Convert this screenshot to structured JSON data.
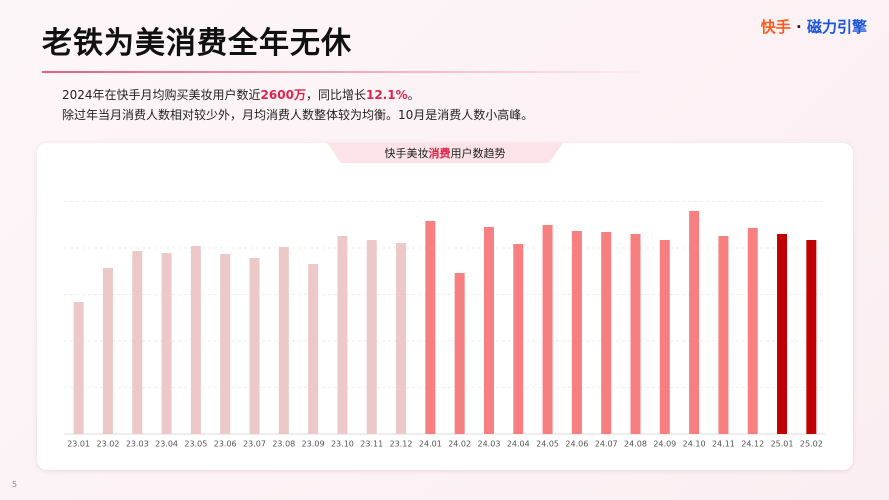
{
  "header": {
    "title": "老铁为美消费全年无休",
    "brand_left": "快手",
    "brand_sep": "·",
    "brand_right": "磁力引擎"
  },
  "summary": {
    "line1": [
      "2024年在快手月均购买美妆用户数近",
      "2600万",
      "，同比增长",
      "12.1%",
      "。"
    ],
    "line2": "除过年当月消费人数相对较少外，月均消费人数整体较为均衡。10月是消费人数小高峰。"
  },
  "page_number": "5",
  "chart_data": {
    "type": "bar",
    "title_parts": [
      "快手美妆",
      "消费",
      "用户数趋势"
    ],
    "categories": [
      "23.01",
      "23.02",
      "23.03",
      "23.04",
      "23.05",
      "23.06",
      "23.07",
      "23.08",
      "23.09",
      "23.10",
      "23.11",
      "23.12",
      "24.01",
      "24.02",
      "24.03",
      "24.04",
      "24.05",
      "24.06",
      "24.07",
      "24.08",
      "24.09",
      "24.10",
      "24.11",
      "24.12",
      "25.01",
      "25.02"
    ],
    "values": [
      132,
      166,
      183,
      181,
      188,
      180,
      176,
      187,
      170,
      198,
      194,
      191,
      213,
      161,
      207,
      190,
      209,
      203,
      202,
      200,
      194,
      223,
      198,
      206,
      200,
      194
    ],
    "colors": [
      "#edc8c8",
      "#edc8c8",
      "#edc8c8",
      "#edc8c8",
      "#edc8c8",
      "#edc8c8",
      "#edc8c8",
      "#edc8c8",
      "#edc8c8",
      "#edc8c8",
      "#edc8c8",
      "#edc8c8",
      "#f77f7f",
      "#f77f7f",
      "#f77f7f",
      "#f77f7f",
      "#f77f7f",
      "#f77f7f",
      "#f77f7f",
      "#f77f7f",
      "#f77f7f",
      "#f77f7f",
      "#f77f7f",
      "#f77f7f",
      "#c00000",
      "#c00000"
    ],
    "ylim": [
      0,
      250
    ],
    "grid": true
  }
}
